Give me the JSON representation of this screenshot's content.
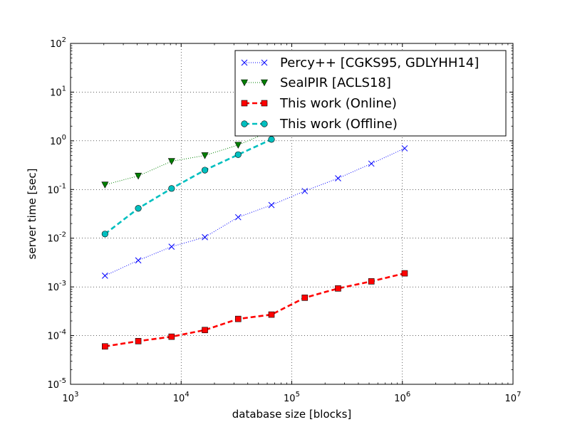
{
  "chart_data": {
    "type": "line",
    "title": "",
    "xlabel": "database size [blocks]",
    "ylabel": "server time [sec]",
    "xscale": "log",
    "yscale": "log",
    "xlim": [
      1000,
      10000000
    ],
    "ylim": [
      1e-05,
      100
    ],
    "grid": true,
    "legend_position": "top-right",
    "x_ticks": [
      {
        "base": "10",
        "exp": "3"
      },
      {
        "base": "10",
        "exp": "4"
      },
      {
        "base": "10",
        "exp": "5"
      },
      {
        "base": "10",
        "exp": "6"
      },
      {
        "base": "10",
        "exp": "7"
      }
    ],
    "y_ticks": [
      {
        "base": "10",
        "exp": "-5"
      },
      {
        "base": "10",
        "exp": "-4"
      },
      {
        "base": "10",
        "exp": "-3"
      },
      {
        "base": "10",
        "exp": "-2"
      },
      {
        "base": "10",
        "exp": "-1"
      },
      {
        "base": "10",
        "exp": "0"
      },
      {
        "base": "10",
        "exp": "1"
      },
      {
        "base": "10",
        "exp": "2"
      }
    ],
    "series": [
      {
        "name": "Percy++ [CGKS95, GDLYHH14]",
        "color": "#0000ff",
        "line_style": "dotted",
        "marker": "x",
        "x": [
          2048,
          4096,
          8192,
          16384,
          32768,
          65536,
          131072,
          262144,
          524288,
          1048576
        ],
        "y": [
          0.0017,
          0.0035,
          0.0067,
          0.0105,
          0.027,
          0.048,
          0.093,
          0.17,
          0.34,
          0.7
        ]
      },
      {
        "name": "SealPIR [ACLS18]",
        "color": "#008000",
        "line_style": "dotted",
        "marker": "triangle-down",
        "x": [
          2048,
          4096,
          8192,
          16384,
          32768,
          65536
        ],
        "y": [
          0.125,
          0.19,
          0.38,
          0.5,
          0.82,
          1.6
        ]
      },
      {
        "name": "This work (Online)",
        "color": "#ff0000",
        "line_style": "dashed",
        "marker": "square",
        "x": [
          2048,
          4096,
          8192,
          16384,
          32768,
          65536,
          131072,
          262144,
          524288,
          1048576
        ],
        "y": [
          6e-05,
          7.7e-05,
          9.5e-05,
          0.00013,
          0.00022,
          0.00027,
          0.0006,
          0.00093,
          0.0013,
          0.0019
        ]
      },
      {
        "name": "This work (Offline)",
        "color": "#00bfbf",
        "line_style": "dashed",
        "marker": "circle",
        "x": [
          2048,
          4096,
          8192,
          16384,
          32768,
          65536
        ],
        "y": [
          0.0122,
          0.041,
          0.105,
          0.25,
          0.52,
          1.07
        ]
      }
    ]
  }
}
